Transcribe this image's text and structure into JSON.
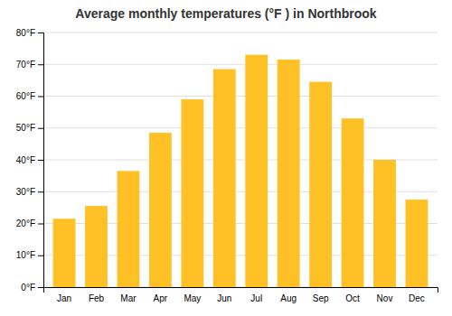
{
  "chart_data": {
    "type": "bar",
    "title": "Average monthly temperatures (°F ) in Northbrook",
    "categories": [
      "Jan",
      "Feb",
      "Mar",
      "Apr",
      "May",
      "Jun",
      "Jul",
      "Aug",
      "Sep",
      "Oct",
      "Nov",
      "Dec"
    ],
    "values": [
      21.5,
      25.5,
      36.5,
      48.5,
      59.0,
      68.5,
      73.0,
      71.5,
      64.5,
      53.0,
      40.0,
      27.5
    ],
    "color": "#FFC125",
    "ylim": [
      0,
      80
    ],
    "yticks": [
      {
        "value": 0,
        "label": "0°F"
      },
      {
        "value": 10,
        "label": "10°F"
      },
      {
        "value": 20,
        "label": "20°F"
      },
      {
        "value": 30,
        "label": "30°F"
      },
      {
        "value": 40,
        "label": "40°F"
      },
      {
        "value": 50,
        "label": "50°F"
      },
      {
        "value": 60,
        "label": "60°F"
      },
      {
        "value": 70,
        "label": "70°F"
      },
      {
        "value": 80,
        "label": "80°F"
      }
    ],
    "grid": true
  }
}
